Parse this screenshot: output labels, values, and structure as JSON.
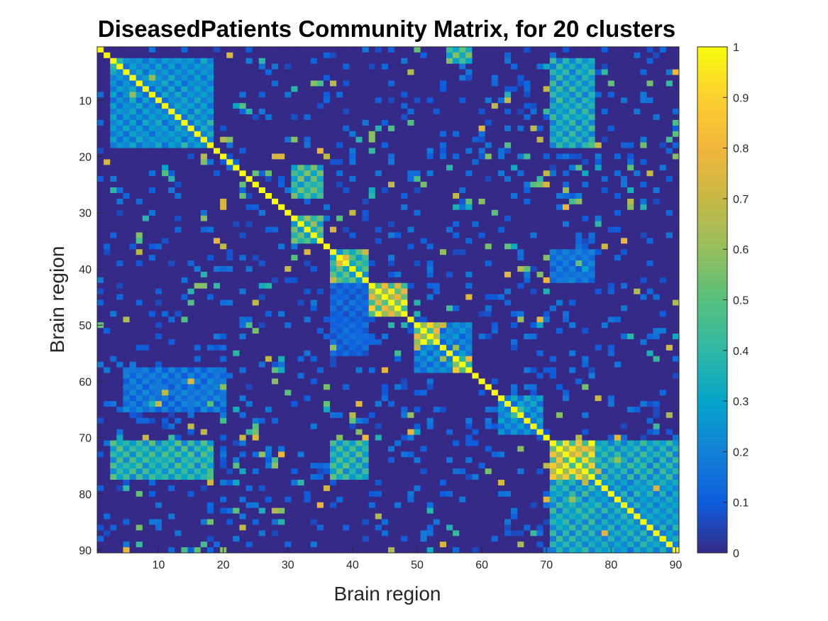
{
  "chart_data": {
    "type": "heatmap",
    "title": "DiseasedPatients Community Matrix, for 20 clusters",
    "xlabel": "Brain region",
    "ylabel": "Brain region",
    "n": 90,
    "xlim": [
      0.5,
      90.5
    ],
    "ylim": [
      0.5,
      90.5
    ],
    "y_reversed": true,
    "xticks": [
      10,
      20,
      30,
      40,
      50,
      60,
      70,
      80,
      90
    ],
    "yticks": [
      10,
      20,
      30,
      40,
      50,
      60,
      70,
      80,
      90
    ],
    "colormap": "parula",
    "colorbar": {
      "range": [
        0,
        1
      ],
      "ticks": [
        0,
        0.1,
        0.2,
        0.3,
        0.4,
        0.5,
        0.6,
        0.7,
        0.8,
        0.9,
        1
      ],
      "tick_labels": [
        "0",
        "0.1",
        "0.2",
        "0.3",
        "0.4",
        "0.5",
        "0.6",
        "0.7",
        "0.8",
        "0.9",
        "1"
      ]
    },
    "diagonal_value": 1,
    "background_value": 0,
    "blocks": [
      {
        "rows": [
          43,
          48
        ],
        "cols": [
          43,
          48
        ],
        "value": 0.88
      },
      {
        "rows": [
          50,
          53
        ],
        "cols": [
          50,
          53
        ],
        "value": 0.9
      },
      {
        "rows": [
          71,
          77
        ],
        "cols": [
          71,
          77
        ],
        "value": 0.95
      },
      {
        "rows": [
          56,
          58
        ],
        "cols": [
          56,
          58
        ],
        "value": 0.85
      },
      {
        "rows": [
          31,
          35
        ],
        "cols": [
          31,
          35
        ],
        "value": 0.55
      },
      {
        "rows": [
          22,
          27
        ],
        "cols": [
          31,
          35
        ],
        "value": 0.5
      },
      {
        "rows": [
          78,
          90
        ],
        "cols": [
          78,
          90
        ],
        "value": 0.35
      },
      {
        "rows": [
          3,
          18
        ],
        "cols": [
          3,
          18
        ],
        "value": 0.3
      },
      {
        "rows": [
          37,
          42
        ],
        "cols": [
          37,
          42
        ],
        "value": 0.5
      },
      {
        "rows": [
          43,
          55
        ],
        "cols": [
          37,
          42
        ],
        "value": 0.15
      },
      {
        "rows": [
          71,
          77
        ],
        "cols": [
          37,
          42
        ],
        "value": 0.45
      },
      {
        "rows": [
          37,
          42
        ],
        "cols": [
          71,
          77
        ],
        "value": 0.2
      },
      {
        "rows": [
          71,
          77
        ],
        "cols": [
          3,
          18
        ],
        "value": 0.45
      },
      {
        "rows": [
          3,
          18
        ],
        "cols": [
          71,
          77
        ],
        "value": 0.4
      },
      {
        "rows": [
          71,
          77
        ],
        "cols": [
          78,
          90
        ],
        "value": 0.4
      },
      {
        "rows": [
          78,
          90
        ],
        "cols": [
          71,
          77
        ],
        "value": 0.4
      },
      {
        "rows": [
          50,
          58
        ],
        "cols": [
          50,
          58
        ],
        "value": 0.25
      },
      {
        "rows": [
          63,
          69
        ],
        "cols": [
          63,
          69
        ],
        "value": 0.3
      },
      {
        "rows": [
          58,
          65
        ],
        "cols": [
          5,
          20
        ],
        "value": 0.2
      },
      {
        "rows": [
          1,
          3
        ],
        "cols": [
          55,
          58
        ],
        "value": 0.5
      }
    ]
  }
}
